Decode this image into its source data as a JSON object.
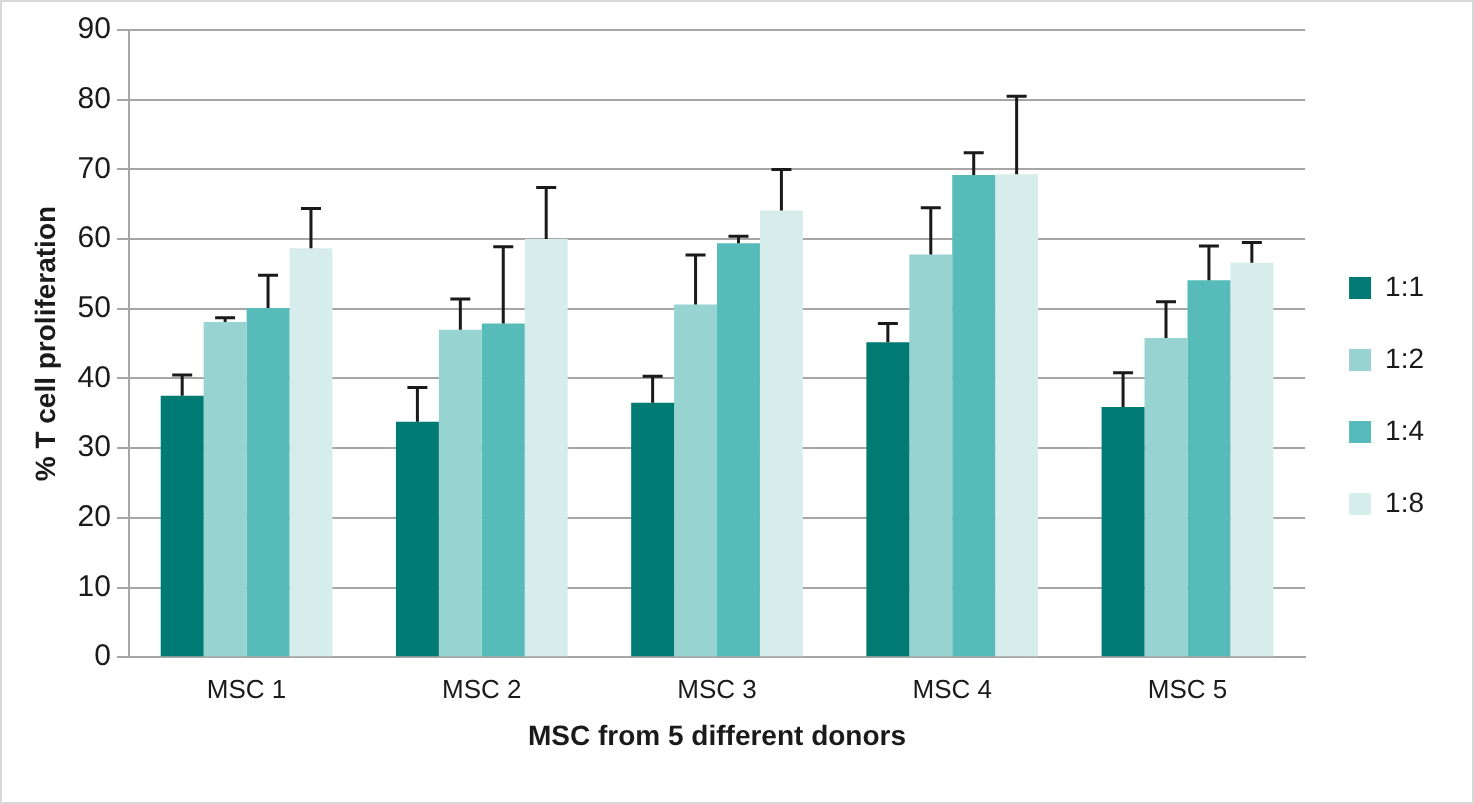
{
  "chart_data": {
    "type": "bar",
    "xlabel": "MSC from 5 different donors",
    "ylabel": "% T cell proliferation",
    "categories": [
      "MSC 1",
      "MSC 2",
      "MSC 3",
      "MSC 4",
      "MSC 5"
    ],
    "series": [
      {
        "name": "1:1",
        "color": "#007b74",
        "values": [
          37.5,
          33.8,
          36.5,
          45.2,
          35.9
        ],
        "errors": [
          [
            37.5,
            40.5
          ],
          [
            33.8,
            38.7
          ],
          [
            36.5,
            40.3
          ],
          [
            45.2,
            47.9
          ],
          [
            35.9,
            40.8
          ]
        ]
      },
      {
        "name": "1:2",
        "color": "#96d3d1",
        "values": [
          48.1,
          47.0,
          50.6,
          57.8,
          45.8
        ],
        "errors": [
          [
            48.1,
            48.7
          ],
          [
            47.0,
            51.4
          ],
          [
            50.6,
            57.7
          ],
          [
            57.8,
            64.5
          ],
          [
            45.8,
            51.0
          ]
        ]
      },
      {
        "name": "1:4",
        "color": "#57bcb9",
        "values": [
          50.1,
          47.9,
          59.4,
          69.2,
          54.1
        ],
        "errors": [
          [
            50.1,
            54.8
          ],
          [
            47.9,
            58.9
          ],
          [
            59.4,
            60.4
          ],
          [
            69.2,
            72.4
          ],
          [
            54.1,
            59.0
          ]
        ]
      },
      {
        "name": "1:8",
        "color": "#d6edeb",
        "values": [
          58.7,
          60.0,
          64.1,
          69.3,
          56.6
        ],
        "errors": [
          [
            58.7,
            64.4
          ],
          [
            60.0,
            67.4
          ],
          [
            64.1,
            70.0
          ],
          [
            69.3,
            80.5
          ],
          [
            56.6,
            59.5
          ]
        ]
      }
    ],
    "ylim": [
      0,
      90
    ],
    "yticks": [
      0,
      10,
      20,
      30,
      40,
      50,
      60,
      70,
      80,
      90
    ],
    "grid": "y",
    "legend": "right"
  }
}
